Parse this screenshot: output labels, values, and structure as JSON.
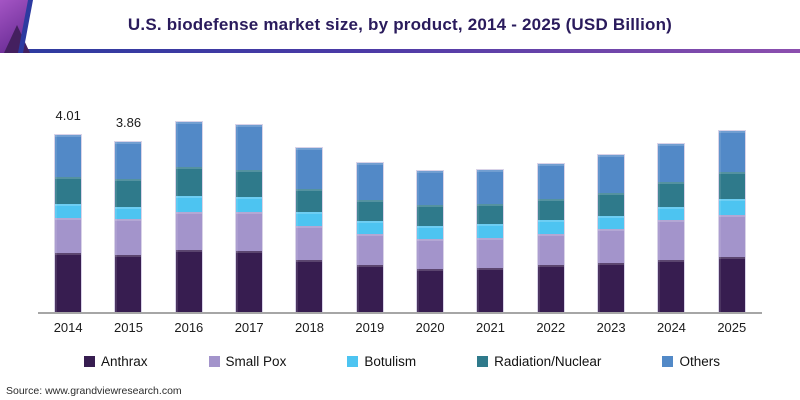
{
  "header": {
    "title": "U.S. biodefense market size, by product, 2014 - 2025 (USD Billion)"
  },
  "chart_data": {
    "type": "bar",
    "stacked": true,
    "title": "U.S. biodefense market size, by product, 2014 - 2025 (USD Billion)",
    "unit": "USD Billion",
    "categories": [
      "2014",
      "2015",
      "2016",
      "2017",
      "2018",
      "2019",
      "2020",
      "2021",
      "2022",
      "2023",
      "2024",
      "2025"
    ],
    "series": [
      {
        "name": "Anthrax",
        "color": "#371d50",
        "values": [
          1.34,
          1.29,
          1.4,
          1.38,
          1.19,
          1.06,
          0.98,
          1.0,
          1.06,
          1.12,
          1.17,
          1.25
        ]
      },
      {
        "name": "Small Pox",
        "color": "#a394cb",
        "values": [
          0.79,
          0.81,
          0.88,
          0.89,
          0.77,
          0.7,
          0.68,
          0.68,
          0.72,
          0.77,
          0.91,
          0.96
        ]
      },
      {
        "name": "Botulism",
        "color": "#4dc4f1",
        "values": [
          0.32,
          0.28,
          0.36,
          0.33,
          0.3,
          0.3,
          0.29,
          0.31,
          0.3,
          0.28,
          0.3,
          0.36
        ]
      },
      {
        "name": "Radiation/Nuclear",
        "color": "#2f7a8b",
        "values": [
          0.61,
          0.63,
          0.64,
          0.63,
          0.54,
          0.49,
          0.48,
          0.47,
          0.48,
          0.54,
          0.57,
          0.6
        ]
      },
      {
        "name": "Others",
        "color": "#5289c7",
        "values": [
          0.95,
          0.85,
          1.04,
          1.0,
          0.91,
          0.82,
          0.76,
          0.75,
          0.79,
          0.86,
          0.87,
          0.94
        ]
      }
    ],
    "totals": [
      4.01,
      3.86,
      4.32,
      4.23,
      3.71,
      3.37,
      3.19,
      3.21,
      3.35,
      3.57,
      3.82,
      4.11
    ],
    "annotations": [
      {
        "category": "2014",
        "text": "4.01"
      },
      {
        "category": "2015",
        "text": "3.86"
      }
    ],
    "ylim": [
      0,
      4.5
    ],
    "grid": false,
    "legend_position": "bottom",
    "xlabel": "",
    "ylabel": ""
  },
  "footer": {
    "source": "Source: www.grandviewresearch.com"
  },
  "colors": {
    "title_text": "#2a1b5c",
    "banner_line_left": "#2c3b9f",
    "banner_line_right": "#8c4fae",
    "axis_line": "#a6a6a6",
    "decoration_purple_light": "#a455c4",
    "decoration_purple_dark": "#6b2d96",
    "decoration_triangle": "#44205f",
    "decoration_blue_edge": "#2c3aa0"
  }
}
